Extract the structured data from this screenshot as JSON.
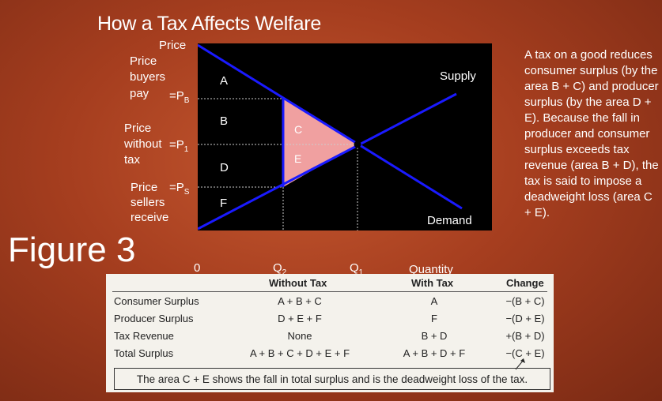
{
  "title": "How a Tax Affects Welfare",
  "figure_label": "Figure 3",
  "axis": {
    "y_label": "Price",
    "x_label_line1": "Quantity",
    "origin": "0",
    "q2": "Q",
    "q2_sub": "2",
    "q1": "Q",
    "q1_sub": "1"
  },
  "price_labels": {
    "buyers_line1": "Price",
    "buyers_line2": "buyers",
    "buyers_line3": "pay",
    "pb": "=P",
    "pb_sub": "B",
    "without_line1": "Price",
    "without_line2": "without",
    "without_line3": "tax",
    "p1": "=P",
    "p1_sub": "1",
    "sellers_line1": "Price",
    "sellers_line2": "sellers",
    "sellers_line3": "receive",
    "ps": "=P",
    "ps_sub": "S"
  },
  "curves": {
    "supply": "Supply",
    "demand": "Demand"
  },
  "areas": {
    "a": "A",
    "b": "B",
    "c": "C",
    "d": "D",
    "e": "E",
    "f": "F"
  },
  "colors": {
    "curve": "#1a1aff",
    "deadweight": "#f0a0a0",
    "graph_bg": "#000000"
  },
  "side_text": "A tax on a good reduces consumer surplus (by the area B + C) and producer surplus (by the area D + E). Because the fall in producer and consumer surplus exceeds tax revenue (area B + D), the tax is said to impose a deadweight loss (area C + E).",
  "table": {
    "headers": {
      "without": "Without Tax",
      "with": "With Tax",
      "change": "Change"
    },
    "rows": [
      {
        "label": "Consumer Surplus",
        "without": "A + B + C",
        "with": "A",
        "change": "−(B + C)"
      },
      {
        "label": "Producer Surplus",
        "without": "D + E + F",
        "with": "F",
        "change": "−(D + E)"
      },
      {
        "label": "Tax Revenue",
        "without": "None",
        "with": "B + D",
        "change": "+(B + D)"
      },
      {
        "label": "Total Surplus",
        "without": "A + B + C + D + E + F",
        "with": "A + B + D + F",
        "change": "−(C + E)"
      }
    ],
    "note": "The area C + E shows the fall in total surplus and is the deadweight loss of the tax."
  }
}
